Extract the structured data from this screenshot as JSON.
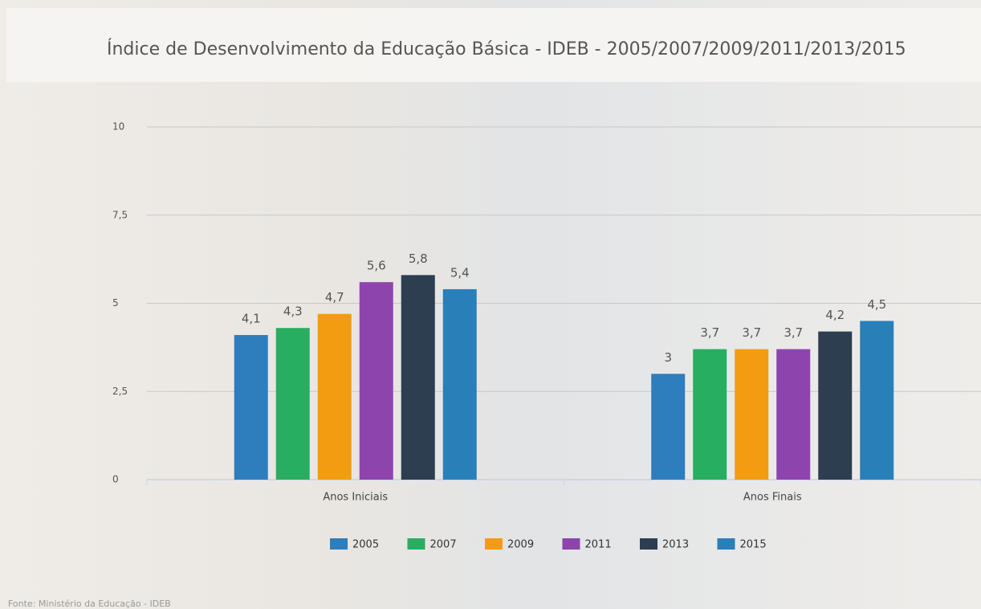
{
  "chart_data": {
    "type": "bar",
    "title": "Índice de Desenvolvimento da Educação Básica - IDEB - 2005/2007/2009/2011/2013/2015",
    "source": "Fonte: Ministério da Educação - IDEB",
    "categories": [
      "Anos Iniciais",
      "Anos Finais"
    ],
    "series": [
      {
        "name": "2005",
        "color": "#2e7dbd",
        "values": [
          4.1,
          3
        ],
        "value_labels": [
          "4,1",
          "3"
        ]
      },
      {
        "name": "2007",
        "color": "#27ae60",
        "values": [
          4.3,
          3.7
        ],
        "value_labels": [
          "4,3",
          "3,7"
        ]
      },
      {
        "name": "2009",
        "color": "#f39c12",
        "values": [
          4.7,
          3.7
        ],
        "value_labels": [
          "4,7",
          "3,7"
        ]
      },
      {
        "name": "2011",
        "color": "#8e44ad",
        "values": [
          5.6,
          3.7
        ],
        "value_labels": [
          "5,6",
          "3,7"
        ]
      },
      {
        "name": "2013",
        "color": "#2c3e50",
        "values": [
          5.8,
          4.2
        ],
        "value_labels": [
          "5,8",
          "4,2"
        ]
      },
      {
        "name": "2015",
        "color": "#2980b9",
        "values": [
          5.4,
          4.5
        ],
        "value_labels": [
          "5,4",
          "4,5"
        ]
      }
    ],
    "ylim": [
      0,
      10
    ],
    "yticks": [
      0,
      {
        "value": 2.5,
        "label": "2,5"
      },
      5,
      {
        "value": 7.5,
        "label": "7,5"
      },
      10
    ],
    "grid": true,
    "legend": "bottom"
  }
}
